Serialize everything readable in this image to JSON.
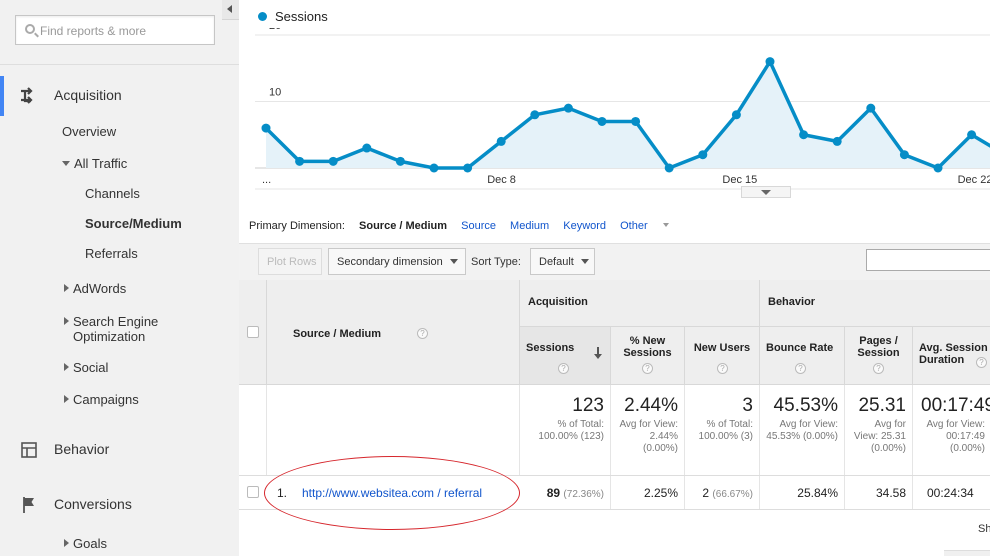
{
  "search": {
    "placeholder": "Find reports & more"
  },
  "nav": {
    "acquisition": "Acquisition",
    "overview": "Overview",
    "all_traffic": "All Traffic",
    "channels": "Channels",
    "source_medium": "Source/Medium",
    "referrals": "Referrals",
    "adwords": "AdWords",
    "seo_line1": "Search Engine",
    "seo_line2": "Optimization",
    "social": "Social",
    "campaigns": "Campaigns",
    "behavior": "Behavior",
    "conversions": "Conversions",
    "goals": "Goals"
  },
  "chart_data": {
    "type": "area",
    "series": [
      {
        "name": "Sessions",
        "color": "#058dc7",
        "values": [
          6,
          1,
          1,
          3,
          1,
          0,
          0,
          4,
          8,
          9,
          7,
          7,
          0,
          2,
          8,
          16,
          5,
          4,
          9,
          2,
          0,
          5,
          2
        ]
      }
    ],
    "yticks": [
      "20",
      "10"
    ],
    "ylim": [
      0,
      20
    ],
    "xticks": [
      {
        "label": "...",
        "index": 0
      },
      {
        "label": "Dec 8",
        "index": 7
      },
      {
        "label": "Dec 15",
        "index": 14
      },
      {
        "label": "Dec 22",
        "index": 21
      }
    ]
  },
  "primary_dimension": {
    "label": "Primary Dimension:",
    "current": "Source / Medium",
    "options": [
      "Source",
      "Medium",
      "Keyword"
    ],
    "other": "Other"
  },
  "controls": {
    "plot_rows": "Plot Rows",
    "secondary_dimension": "Secondary dimension",
    "sort_type_label": "Sort Type:",
    "sort_type_value": "Default"
  },
  "table": {
    "source_medium_header": "Source / Medium",
    "acquisition_header": "Acquisition",
    "behavior_header": "Behavior",
    "columns": {
      "sessions": "Sessions",
      "new_sessions": "% New Sessions",
      "new_users": "New Users",
      "bounce_rate": "Bounce Rate",
      "pages_session": "Pages / Session",
      "avg_session_duration": "Avg. Session Duration"
    },
    "totals": {
      "sessions": "123",
      "sessions_sub": "% of Total: 100.00% (123)",
      "new_sessions": "2.44%",
      "new_sessions_sub": "Avg for View: 2.44% (0.00%)",
      "new_users": "3",
      "new_users_sub": "% of Total: 100.00% (3)",
      "bounce_rate": "45.53%",
      "bounce_rate_sub": "Avg for View: 45.53% (0.00%)",
      "pages_session": "25.31",
      "pages_session_sub": "Avg for View: 25.31 (0.00%)",
      "avg_duration": "00:17:49",
      "avg_duration_sub": "Avg for View: 00:17:49 (0.00%)"
    },
    "rows": [
      {
        "index": "1.",
        "source": "http://www.websitea.com / referral",
        "sessions": "89",
        "sessions_pct": "(72.36%)",
        "new_sessions": "2.25%",
        "new_users": "2",
        "new_users_pct": "(66.67%)",
        "bounce_rate": "25.84%",
        "pages_session": "34.58",
        "avg_duration": "00:24:34"
      }
    ]
  },
  "footer": {
    "text": "Sh"
  }
}
